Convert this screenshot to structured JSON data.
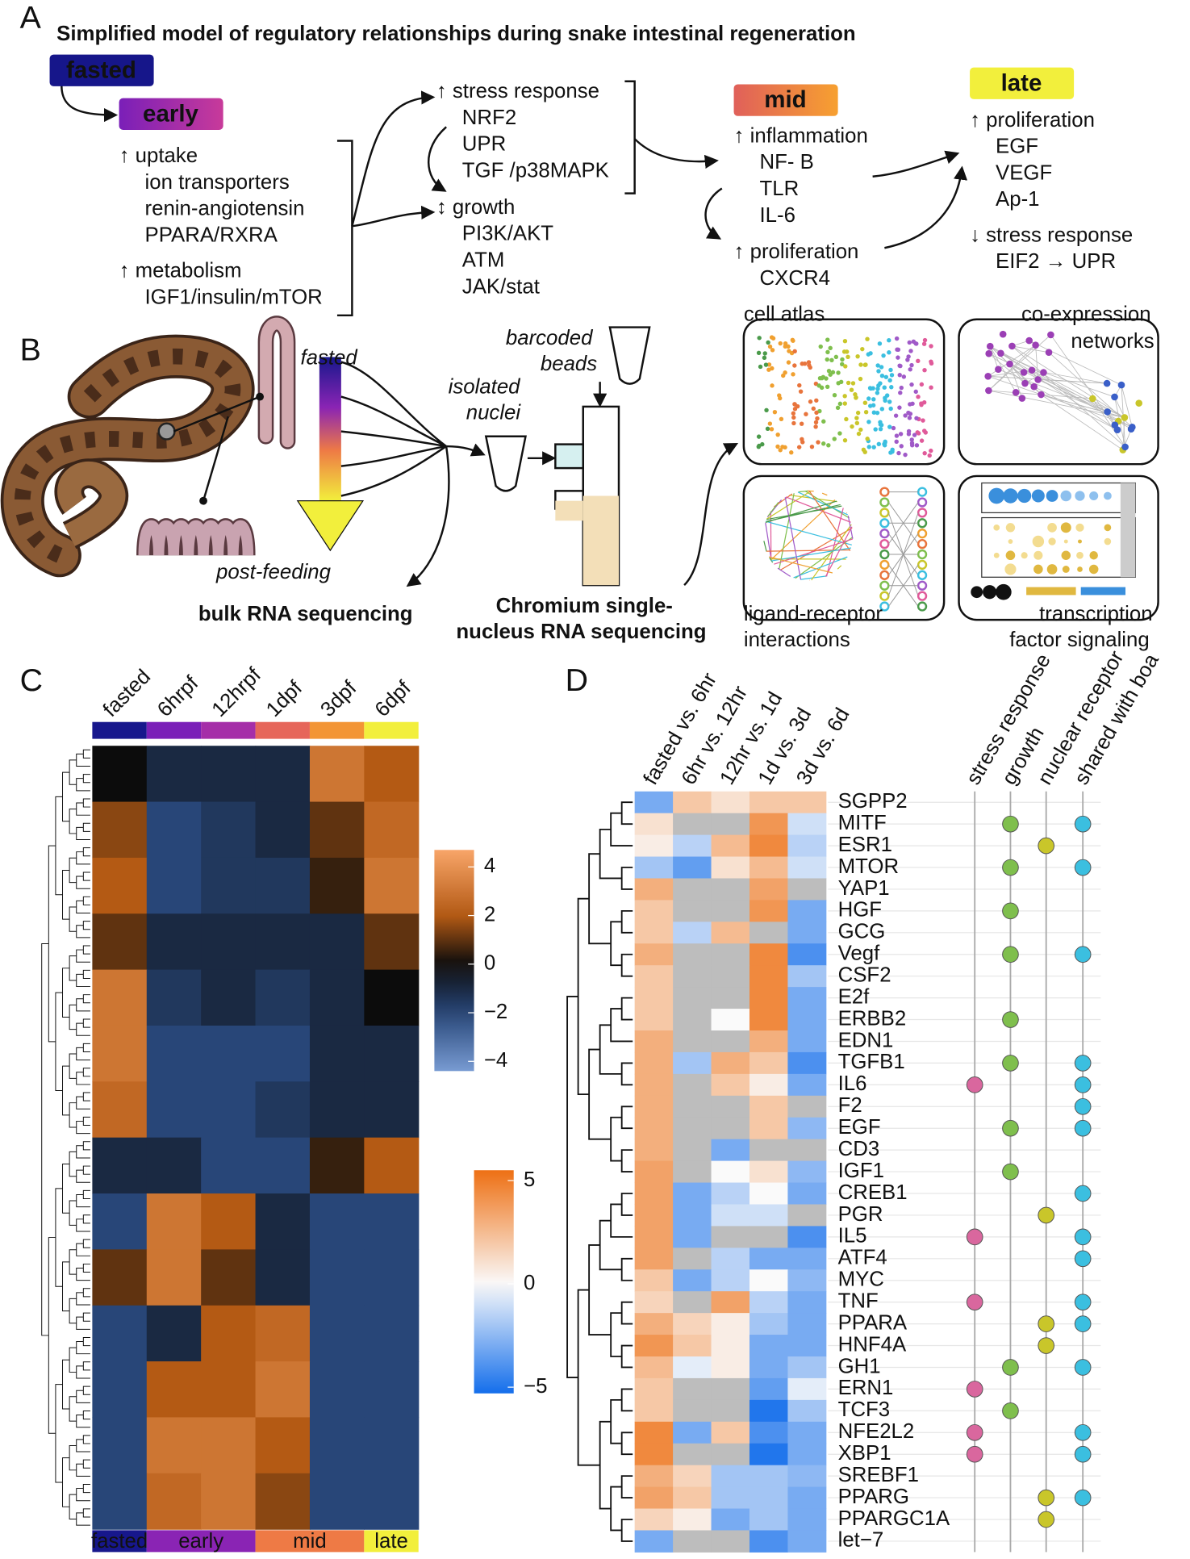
{
  "panel_a": {
    "letter": "A",
    "title": "Simplified model of regulatory relationships during snake intestinal regeneration",
    "stages": [
      {
        "name": "fasted"
      },
      {
        "name": "early"
      },
      {
        "name": "mid"
      },
      {
        "name": "late"
      }
    ],
    "blocks": [
      {
        "heading": "↑ uptake",
        "items": [
          {
            "text": "ion transporters",
            "color": "#e57c1e"
          },
          {
            "text": "renin-angiotensin",
            "color": "#e57c1e"
          },
          {
            "text": "PPARA/RXRA",
            "color": "#e57c1e"
          }
        ]
      },
      {
        "heading": "↑ metabolism",
        "items": [
          {
            "text": "IGF1/insulin/mTOR",
            "color": "#e57c1e"
          }
        ]
      },
      {
        "heading": "↑ stress response",
        "items": [
          {
            "text": "NRF2",
            "color": "#e57c1e"
          },
          {
            "text": "UPR",
            "color": "#e57c1e"
          },
          {
            "text": "TGF /p38MAPK",
            "color": "#e57c1e"
          }
        ]
      },
      {
        "heading": "↕ growth",
        "items": [
          {
            "text": "PI3K/AKT",
            "color": "#e57c1e"
          },
          {
            "text": "ATM",
            "color": "#2a74d4"
          },
          {
            "text": "JAK/stat",
            "color": "#2a74d4"
          }
        ]
      },
      {
        "heading": "↑ inflammation",
        "items": [
          {
            "text": "NF- B",
            "color": "#e57c1e"
          },
          {
            "text": "TLR",
            "color": "#e57c1e"
          },
          {
            "text": "IL-6",
            "color": "#e57c1e"
          }
        ]
      },
      {
        "heading": "↑ proliferation",
        "items": [
          {
            "text": "CXCR4",
            "color": "#e57c1e"
          }
        ]
      },
      {
        "heading": "↑ proliferation",
        "items": [
          {
            "text": "EGF",
            "color": "#e57c1e"
          },
          {
            "text": "VEGF",
            "color": "#e57c1e"
          },
          {
            "text": "Ap-1",
            "color": "#e57c1e"
          }
        ]
      },
      {
        "heading": "↓ stress response",
        "items": [
          {
            "text": "EIF2 → UPR",
            "color": "#2a74d4"
          }
        ]
      }
    ]
  },
  "panel_b": {
    "letter": "B",
    "fasted": "fasted",
    "post_feeding": "post-feeding",
    "isolated_nuclei": [
      "isolated",
      "nuclei"
    ],
    "barcoded_beads": [
      "barcoded",
      "beads"
    ],
    "bulk": "bulk RNA sequencing",
    "chromium": [
      "Chromium single-",
      "nucleus RNA sequencing"
    ],
    "cell_atlas": "cell atlas",
    "coexpression": [
      "co-expression",
      "networks"
    ],
    "ligand_receptor": [
      "ligand-receptor",
      "interactions"
    ],
    "tf_signaling": [
      "transcription",
      "factor signaling"
    ]
  },
  "chart_data": [
    {
      "type": "heatmap",
      "panel_letter": "C",
      "columns": [
        "fasted",
        "6hrpf",
        "12hrpf",
        "1dpf",
        "3dpf",
        "6dpf"
      ],
      "column_colors": [
        "#17178c",
        "#7a1fb8",
        "#a52ea8",
        "#e6665a",
        "#f39535",
        "#f2ef3c"
      ],
      "groups": [
        {
          "name": "fasted",
          "span": 1,
          "color": "#17178c",
          "text_color": "#ffffff"
        },
        {
          "name": "early",
          "span": 2,
          "color": "#8a24b4",
          "text_color": "#ffffff"
        },
        {
          "name": "mid",
          "span": 2,
          "color": "#ee7a45",
          "text_color": "#111111"
        },
        {
          "name": "late",
          "span": 1,
          "color": "#f2ef3c",
          "text_color": "#111111"
        }
      ],
      "values": [
        [
          0,
          -1,
          -1,
          -1,
          3,
          2
        ],
        [
          1.5,
          -2,
          -1.5,
          -1,
          1,
          2.5
        ],
        [
          2,
          -2,
          -1.5,
          -1.5,
          0.5,
          3
        ],
        [
          1,
          -1,
          -1,
          -1,
          -1,
          1
        ],
        [
          3,
          -1.5,
          -1,
          -1.5,
          -1,
          0
        ],
        [
          3,
          -2,
          -2,
          -2,
          -1,
          -1
        ],
        [
          2.5,
          -2,
          -2,
          -1.5,
          -1,
          -1
        ],
        [
          -1,
          -1,
          -2,
          -2,
          0.5,
          2
        ],
        [
          -2,
          3,
          2,
          -1,
          -2,
          -2
        ],
        [
          1,
          3,
          1,
          -1,
          -2,
          -2
        ],
        [
          -2,
          -1,
          2,
          2.5,
          -2,
          -2
        ],
        [
          -2,
          2,
          2,
          3,
          -2,
          -2
        ],
        [
          -2,
          3,
          3,
          2,
          -2,
          -2
        ],
        [
          -2,
          2.5,
          3,
          1.5,
          -2,
          -2
        ]
      ],
      "colorbar": {
        "lim": [
          -4.4,
          4.7
        ],
        "ticks": [
          4,
          2,
          0,
          {
            "value": -2,
            "label": "−2"
          },
          {
            "value": -4,
            "label": "−4"
          }
        ]
      }
    },
    {
      "type": "heatmap",
      "panel_letter": "D",
      "columns": [
        "fasted vs. 6hr",
        "6hr vs. 12hr",
        "12hr vs. 1d",
        "1d vs. 3d",
        "3d vs. 6d"
      ],
      "rows": [
        "SGPP2",
        "MITF",
        "ESR1",
        "MTOR",
        "YAP1",
        "HGF",
        "GCG",
        "Vegf",
        "CSF2",
        "E2f",
        "ERBB2",
        "EDN1",
        "TGFB1",
        "IL6",
        "F2",
        "EGF",
        "CD3",
        "IGF1",
        "CREB1",
        "PGR",
        "IL5",
        "ATF4",
        "MYC",
        "TNF",
        "PPARA",
        "HNF4A",
        "GH1",
        "ERN1",
        "TCF3",
        "NFE2L2",
        "XBP1",
        "SREBF1",
        "PPARG",
        "PPARGC1A",
        "let−7"
      ],
      "null_color": "#bdbdbd",
      "values": [
        [
          -3,
          2,
          1,
          2,
          2
        ],
        [
          1,
          null,
          null,
          4,
          -1
        ],
        [
          0.5,
          -1.5,
          2.5,
          4.5,
          -1.5
        ],
        [
          -2,
          -3.5,
          1,
          2.5,
          -1
        ],
        [
          3,
          null,
          null,
          3.5,
          null
        ],
        [
          2,
          null,
          null,
          4,
          -3
        ],
        [
          2,
          -1.5,
          2.5,
          null,
          -3
        ],
        [
          3,
          null,
          null,
          4.5,
          -4
        ],
        [
          2,
          null,
          null,
          4.5,
          -2
        ],
        [
          2,
          null,
          null,
          4.5,
          -3
        ],
        [
          2,
          null,
          0,
          4.5,
          -3
        ],
        [
          3,
          null,
          null,
          3,
          -3
        ],
        [
          3,
          -2,
          3,
          2,
          -4
        ],
        [
          3,
          null,
          2,
          0.5,
          -3
        ],
        [
          3,
          null,
          null,
          2,
          null
        ],
        [
          3,
          null,
          null,
          2,
          -2.5
        ],
        [
          3,
          null,
          -3,
          null,
          null
        ],
        [
          3.5,
          null,
          0,
          1,
          -2.5
        ],
        [
          3.5,
          -3,
          -1.5,
          0,
          -3
        ],
        [
          3.5,
          -3,
          -1,
          -1,
          null
        ],
        [
          3.5,
          -3,
          null,
          null,
          -4
        ],
        [
          3.5,
          null,
          -1.5,
          -3,
          -3
        ],
        [
          2,
          -3,
          -1.5,
          0,
          -2.5
        ],
        [
          1.5,
          null,
          3.5,
          -1.5,
          -3
        ],
        [
          3,
          1.5,
          0.5,
          -2,
          -3
        ],
        [
          4,
          2,
          0.5,
          -3,
          -3
        ],
        [
          2.5,
          -0.5,
          0.5,
          -3,
          -2
        ],
        [
          2,
          null,
          null,
          -3.5,
          -0.5
        ],
        [
          2,
          null,
          null,
          -5,
          -2
        ],
        [
          4.5,
          -3,
          2,
          -4,
          -3
        ],
        [
          4.5,
          null,
          null,
          -5,
          -3
        ],
        [
          3,
          1.5,
          -2,
          -2,
          -2.5
        ],
        [
          3.5,
          2,
          -2,
          -2,
          -3
        ],
        [
          1.5,
          0.5,
          -3,
          -2,
          -3
        ],
        [
          -3,
          null,
          null,
          -4,
          -3
        ]
      ],
      "colorbar": {
        "lim": [
          -5.3,
          5.5
        ],
        "ticks": [
          5,
          0,
          {
            "value": -5,
            "label": "−5"
          }
        ]
      },
      "annotations": [
        {
          "name": "stress response",
          "color": "#d9679e",
          "members": [
            false,
            false,
            false,
            false,
            false,
            false,
            false,
            false,
            false,
            false,
            false,
            false,
            false,
            true,
            false,
            false,
            false,
            false,
            false,
            false,
            true,
            false,
            false,
            true,
            false,
            false,
            false,
            true,
            false,
            true,
            true,
            false,
            false,
            false,
            false
          ]
        },
        {
          "name": "growth",
          "color": "#7fbf4d",
          "members": [
            false,
            true,
            false,
            true,
            false,
            true,
            false,
            true,
            false,
            false,
            true,
            false,
            true,
            false,
            false,
            true,
            false,
            true,
            false,
            false,
            false,
            false,
            false,
            false,
            false,
            false,
            true,
            false,
            true,
            false,
            false,
            false,
            false,
            false,
            false
          ]
        },
        {
          "name": "nuclear receptor",
          "color": "#c9c62a",
          "members": [
            false,
            false,
            true,
            false,
            false,
            false,
            false,
            false,
            false,
            false,
            false,
            false,
            false,
            false,
            false,
            false,
            false,
            false,
            false,
            true,
            false,
            false,
            false,
            false,
            true,
            true,
            false,
            false,
            false,
            false,
            false,
            false,
            true,
            true,
            false
          ]
        },
        {
          "name": "shared with boa",
          "color": "#3bbfe0",
          "members": [
            false,
            true,
            false,
            true,
            false,
            false,
            false,
            true,
            false,
            false,
            false,
            false,
            true,
            true,
            true,
            true,
            false,
            false,
            true,
            false,
            true,
            true,
            false,
            true,
            true,
            false,
            true,
            false,
            false,
            true,
            true,
            false,
            true,
            false,
            false
          ]
        }
      ]
    }
  ]
}
